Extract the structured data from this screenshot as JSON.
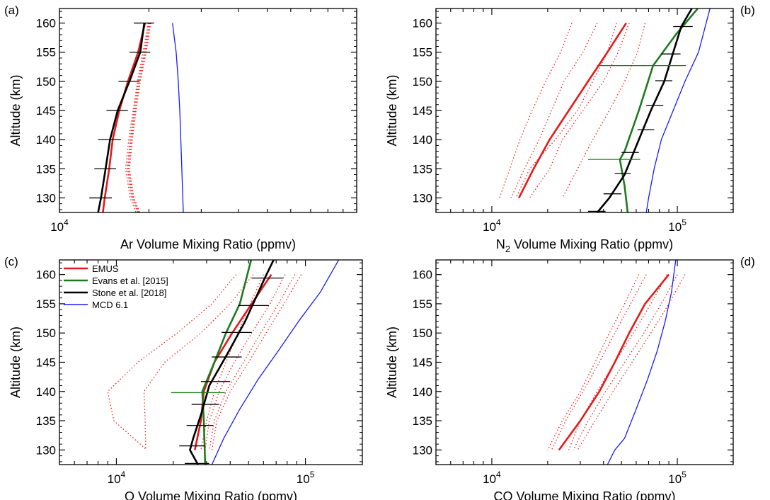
{
  "chart_data": [
    {
      "id": "a",
      "type": "line",
      "panel_label": "(a)",
      "label_side": "left",
      "xlabel": "Ar Volume Mixing Ratio (ppmv)",
      "xlabel_sub": null,
      "ylabel": "Altitude (km)",
      "xscale": "log",
      "xlim": [
        10000,
        100000
      ],
      "ylim": [
        127.5,
        162.5
      ],
      "x_ticks": [
        {
          "value": 10000,
          "base": "10",
          "exp": "4"
        }
      ],
      "y_ticks": [
        130,
        135,
        140,
        145,
        150,
        155,
        160
      ],
      "dotted_profiles": [
        {
          "x": [
            19900,
            19100,
            18300,
            17700,
            17100,
            16700,
            17300,
            18900
          ],
          "y": [
            160,
            155,
            150,
            145,
            140,
            135,
            130,
            125
          ]
        },
        {
          "x": [
            20000,
            19300,
            18400,
            17800,
            17300,
            16900,
            17500,
            19200
          ],
          "y": [
            160,
            155,
            150,
            145,
            140,
            135,
            130,
            125
          ]
        },
        {
          "x": [
            20100,
            19400,
            18500,
            17900,
            17400,
            17000,
            17600,
            19300
          ],
          "y": [
            160,
            155,
            150,
            145,
            140,
            135,
            130,
            125
          ]
        },
        {
          "x": [
            20200,
            19500,
            18600,
            18000,
            17500,
            17100,
            17700,
            19400
          ],
          "y": [
            160,
            155,
            150,
            145,
            140,
            135,
            130,
            125
          ]
        },
        {
          "x": [
            20300,
            19600,
            18700,
            18100,
            17600,
            17200,
            17800,
            19500
          ],
          "y": [
            160,
            155,
            150,
            145,
            140,
            135,
            130,
            125
          ]
        }
      ],
      "series": [
        {
          "name": "EMUS",
          "x": [
            19400,
            18400,
            17000,
            15900,
            15100,
            14700,
            14200,
            13800
          ],
          "y": [
            160,
            155,
            150,
            145,
            140,
            135,
            130,
            125
          ],
          "xerr": null
        },
        {
          "name": "Stone et al. [2018]",
          "x": [
            19300,
            18700,
            17200,
            15700,
            14800,
            14300,
            13800,
            13200
          ],
          "y": [
            160,
            155,
            150,
            145,
            140,
            135,
            130,
            125
          ],
          "xerr": [
            1500,
            1500,
            1400,
            1300,
            1300,
            1200,
            1200,
            1100
          ]
        },
        {
          "name": "MCD 6.1",
          "x": [
            24000,
            24700,
            25100,
            25400,
            25600,
            25800,
            26000,
            26200
          ],
          "y": [
            160,
            155,
            150,
            145,
            140,
            135,
            130,
            125
          ],
          "xerr": null
        }
      ]
    },
    {
      "id": "b",
      "type": "line",
      "panel_label": "(b)",
      "label_side": "right",
      "xlabel": "N",
      "xlabel_sub": "2",
      "xlabel_rest": " Volume Mixing Ratio (ppmv)",
      "ylabel": "Altitude (km)",
      "xscale": "log",
      "xlim": [
        5000,
        200000
      ],
      "ylim": [
        127.5,
        162.5
      ],
      "x_ticks": [
        {
          "value": 10000,
          "base": "10",
          "exp": "4"
        },
        {
          "value": 100000,
          "base": "10",
          "exp": "5"
        }
      ],
      "y_ticks": [
        130,
        135,
        140,
        145,
        150,
        155,
        160
      ],
      "dotted_profiles": [
        {
          "x": [
            27000,
            23500,
            19500,
            16500,
            14200,
            12500,
            11000
          ],
          "y": [
            160,
            155,
            150,
            145,
            140,
            135,
            130
          ]
        },
        {
          "x": [
            37000,
            31000,
            24500,
            21000,
            18000,
            15000,
            12700
          ],
          "y": [
            160,
            155,
            150,
            145,
            140,
            135,
            130
          ]
        },
        {
          "x": [
            47000,
            42000,
            35000,
            29000,
            22000,
            16000,
            13500
          ],
          "y": [
            160,
            155,
            150,
            145,
            140,
            135,
            130
          ]
        },
        {
          "x": [
            55000,
            48000,
            40000,
            31000,
            24000,
            20500,
            16000
          ],
          "y": [
            160,
            155,
            150,
            145,
            140,
            135,
            130
          ]
        },
        {
          "x": [
            67000,
            61000,
            52000,
            43000,
            35000,
            29000,
            24000
          ],
          "y": [
            160,
            155,
            150,
            145,
            140,
            135,
            130
          ]
        }
      ],
      "series": [
        {
          "name": "EMUS",
          "x": [
            53000,
            42000,
            33000,
            26000,
            20500,
            16800,
            14000
          ],
          "y": [
            160,
            155,
            150,
            145,
            140,
            135,
            130
          ],
          "xerr": null
        },
        {
          "name": "Evans et al. [2015]",
          "x": [
            150000,
            98000,
            74000,
            62000,
            52000,
            49000,
            52000,
            54000
          ],
          "y": [
            165,
            158,
            152.7,
            145,
            138,
            136.6,
            132,
            127.5
          ],
          "xerr": null
        },
        {
          "name": "Stone et al. [2018]",
          "x": [
            133000,
            105000,
            85000,
            72000,
            62000,
            52000,
            43000,
            37000
          ],
          "y": [
            165,
            159.4,
            150,
            145,
            140,
            134,
            130,
            127.5
          ],
          "xerr": null
        },
        {
          "name": "MCD 6.1",
          "x": [
            150000,
            130000,
            110000,
            95000,
            82000,
            75000,
            70000,
            68000
          ],
          "y": [
            162.5,
            155,
            150,
            145,
            140,
            135,
            130,
            127.5
          ],
          "xerr": null
        }
      ],
      "error_bars": [
        {
          "series": "Stone et al. [2018]",
          "y": 159.4,
          "x": 108000,
          "xerr": 13000
        },
        {
          "series": "Stone et al. [2018]",
          "y": 154.7,
          "x": 93000,
          "xerr": 11000
        },
        {
          "series": "Stone et al. [2018]",
          "y": 150.1,
          "x": 85000,
          "xerr": 9000
        },
        {
          "series": "Stone et al. [2018]",
          "y": 145.9,
          "x": 76000,
          "xerr": 8000
        },
        {
          "series": "Stone et al. [2018]",
          "y": 141.7,
          "x": 68000,
          "xerr": 7000
        },
        {
          "series": "Stone et al. [2018]",
          "y": 137.8,
          "x": 56000,
          "xerr": 6000
        },
        {
          "series": "Stone et al. [2018]",
          "y": 134.2,
          "x": 51000,
          "xerr": 5000
        },
        {
          "series": "Stone et al. [2018]",
          "y": 130.7,
          "x": 45000,
          "xerr": 5000
        },
        {
          "series": "Stone et al. [2018]",
          "y": 127.7,
          "x": 37000,
          "xerr": 4000
        },
        {
          "series": "Evans et al. [2015]",
          "y": 152.7,
          "x": 74000,
          "xerr": 37000
        },
        {
          "series": "Evans et al. [2015]",
          "y": 136.6,
          "x": 48000,
          "xerr": 15000
        }
      ]
    },
    {
      "id": "c",
      "type": "line",
      "panel_label": "(c)",
      "label_side": "left",
      "xlabel": "O Volume Mixing Ratio (ppmv)",
      "xlabel_sub": null,
      "ylabel": "Altitude (km)",
      "xscale": "log",
      "xlim": [
        5000,
        200000
      ],
      "ylim": [
        127.5,
        162.5
      ],
      "x_ticks": [
        {
          "value": 10000,
          "base": "10",
          "exp": "4"
        },
        {
          "value": 100000,
          "base": "10",
          "exp": "5"
        }
      ],
      "y_ticks": [
        130,
        135,
        140,
        145,
        150,
        155,
        160
      ],
      "legend": {
        "entries": [
          "EMUS",
          "Evans et al. [2015]",
          "Stone et al. [2018]",
          "MCD 6.1"
        ]
      },
      "dotted_profiles": [
        {
          "x": [
            43000,
            32000,
            21000,
            13000,
            9000,
            9700,
            14500
          ],
          "y": [
            160,
            155,
            150,
            145,
            140,
            135,
            130
          ]
        },
        {
          "x": [
            53000,
            40000,
            28000,
            18000,
            14000,
            14200,
            14300
          ],
          "y": [
            160,
            155,
            150,
            145,
            140,
            135,
            130
          ]
        },
        {
          "x": [
            60000,
            51000,
            44000,
            38000,
            33000,
            30000,
            28000
          ],
          "y": [
            160,
            155,
            150,
            145,
            140,
            135,
            130
          ]
        },
        {
          "x": [
            78000,
            65000,
            52000,
            42000,
            35000,
            31000,
            29500
          ],
          "y": [
            160,
            155,
            150,
            145,
            140,
            135,
            130
          ]
        },
        {
          "x": [
            88000,
            72000,
            58000,
            47000,
            38000,
            33000,
            31000
          ],
          "y": [
            160,
            155,
            150,
            145,
            140,
            135,
            130
          ]
        },
        {
          "x": [
            95000,
            77000,
            62000,
            50000,
            40000,
            34000,
            32000
          ],
          "y": [
            160,
            155,
            150,
            145,
            140,
            135,
            130
          ]
        }
      ],
      "series": [
        {
          "name": "EMUS",
          "x": [
            66000,
            52000,
            41000,
            33000,
            29000,
            28000,
            26000
          ],
          "y": [
            160,
            155,
            150,
            145,
            140,
            135,
            130
          ],
          "xerr": null
        },
        {
          "name": "Evans et al. [2015]",
          "x": [
            54000,
            45000,
            38000,
            33000,
            28500,
            29000,
            29500
          ],
          "y": [
            165,
            155,
            150,
            145,
            140,
            135,
            127.5
          ],
          "xerr": null
        },
        {
          "name": "Stone et al. [2018]",
          "x": [
            74000,
            61000,
            48000,
            38000,
            31000,
            28000,
            25500,
            24500,
            27000
          ],
          "y": [
            165,
            159.4,
            152,
            146,
            141,
            136,
            132,
            130,
            127.5
          ],
          "xerr": null
        },
        {
          "name": "MCD 6.1",
          "x": [
            150000,
            120000,
            92000,
            72000,
            56000,
            45000,
            37000,
            32000
          ],
          "y": [
            162.5,
            157,
            152,
            147,
            142,
            137,
            132,
            127.5
          ],
          "xerr": null
        }
      ],
      "error_bars": [
        {
          "series": "Stone et al. [2018]",
          "y": 159.4,
          "x": 64000,
          "xerr": 12000
        },
        {
          "series": "Stone et al. [2018]",
          "y": 154.7,
          "x": 54000,
          "xerr": 10000
        },
        {
          "series": "Stone et al. [2018]",
          "y": 150.1,
          "x": 44000,
          "xerr": 8000
        },
        {
          "series": "Stone et al. [2018]",
          "y": 145.9,
          "x": 39000,
          "xerr": 7000
        },
        {
          "series": "Stone et al. [2018]",
          "y": 141.7,
          "x": 34000,
          "xerr": 6000
        },
        {
          "series": "Stone et al. [2018]",
          "y": 137.8,
          "x": 30000,
          "xerr": 5000
        },
        {
          "series": "Stone et al. [2018]",
          "y": 134.2,
          "x": 28000,
          "xerr": 4500
        },
        {
          "series": "Stone et al. [2018]",
          "y": 130.7,
          "x": 25500,
          "xerr": 4000
        },
        {
          "series": "Stone et al. [2018]",
          "y": 127.7,
          "x": 27000,
          "xerr": 4000
        },
        {
          "series": "Evans et al. [2015]",
          "y": 139.8,
          "x": 28500,
          "xerr": 9000
        }
      ]
    },
    {
      "id": "d",
      "type": "line",
      "panel_label": "(d)",
      "label_side": "right",
      "xlabel": "CO Volume Mixing Ratio (ppmv)",
      "xlabel_sub": null,
      "ylabel": "Altitude (km)",
      "xscale": "log",
      "xlim": [
        5000,
        200000
      ],
      "ylim": [
        127.5,
        162.5
      ],
      "x_ticks": [
        {
          "value": 10000,
          "base": "10",
          "exp": "4"
        },
        {
          "value": 100000,
          "base": "10",
          "exp": "5"
        }
      ],
      "y_ticks": [
        130,
        135,
        140,
        145,
        150,
        155,
        160
      ],
      "dotted_profiles": [
        {
          "x": [
            62000,
            52000,
            43000,
            36000,
            30000,
            24000,
            20000
          ],
          "y": [
            160,
            155,
            150,
            145,
            140,
            135,
            130
          ]
        },
        {
          "x": [
            68000,
            56000,
            46000,
            38000,
            31000,
            25000,
            21000
          ],
          "y": [
            160,
            155,
            150,
            145,
            140,
            135,
            130
          ]
        },
        {
          "x": [
            88000,
            72000,
            58000,
            46000,
            37000,
            30000,
            26000
          ],
          "y": [
            160,
            155,
            150,
            145,
            140,
            135,
            130
          ]
        },
        {
          "x": [
            100000,
            82000,
            66000,
            52000,
            41000,
            33000,
            27500
          ],
          "y": [
            160,
            155,
            150,
            145,
            140,
            135,
            130
          ]
        },
        {
          "x": [
            110000,
            90000,
            72000,
            57000,
            45000,
            36000,
            29000
          ],
          "y": [
            160,
            155,
            150,
            145,
            140,
            135,
            130
          ]
        }
      ],
      "series": [
        {
          "name": "EMUS",
          "x": [
            90000,
            67000,
            55000,
            46000,
            38000,
            30000,
            23000
          ],
          "y": [
            160,
            155,
            150,
            145,
            140,
            135,
            130
          ],
          "xerr": null
        },
        {
          "name": "MCD 6.1",
          "x": [
            98000,
            93000,
            86000,
            78000,
            69000,
            60000,
            52000,
            46000,
            42000
          ],
          "y": [
            162.5,
            157,
            152,
            147,
            142,
            137,
            132,
            130,
            127.5
          ],
          "xerr": null
        }
      ]
    }
  ],
  "series_colors": {
    "EMUS": "#e41a1c",
    "Evans et al. [2015]": "#1e7a1e",
    "Stone et al. [2018]": "#000000",
    "MCD 6.1": "#1a1aff"
  },
  "dotted_color": "#ff2020"
}
